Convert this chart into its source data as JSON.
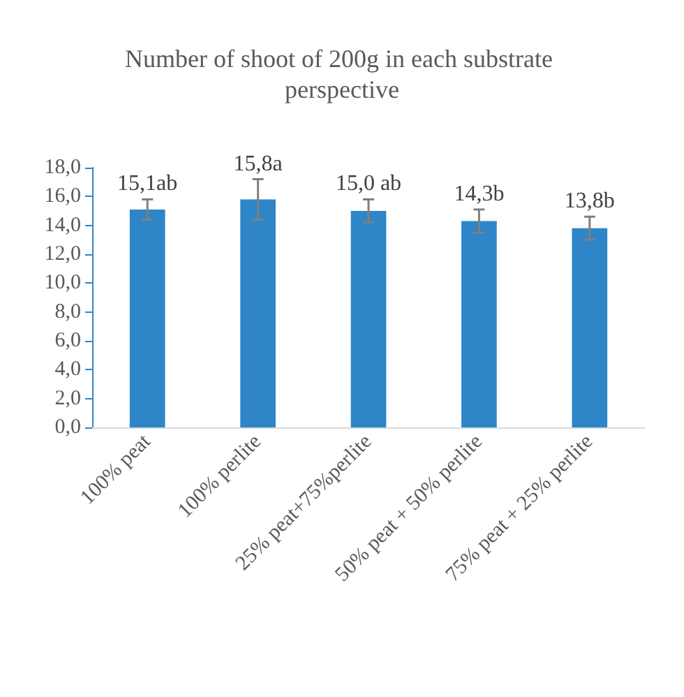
{
  "chart_data": {
    "type": "bar",
    "title": "Number of shoot of 200g in each substrate perspective",
    "categories": [
      "100% peat",
      "100% perlite",
      "25% peat+75%perlite",
      "50% peat + 50% perlite",
      "75% peat + 25% perlite"
    ],
    "values": [
      15.1,
      15.8,
      15.0,
      14.3,
      13.8
    ],
    "errors": [
      0.7,
      1.4,
      0.8,
      0.8,
      0.8
    ],
    "value_labels": [
      "15,1ab",
      "15,8a",
      "15,0 ab",
      "14,3b",
      "13,8b"
    ],
    "color": "#2e86c8",
    "ylim": [
      0,
      18
    ],
    "yticks": [
      {
        "value": 0,
        "label": "0,0"
      },
      {
        "value": 2,
        "label": "2,0"
      },
      {
        "value": 4,
        "label": "4,0"
      },
      {
        "value": 6,
        "label": "6,0"
      },
      {
        "value": 8,
        "label": "8,0"
      },
      {
        "value": 10,
        "label": "10,0"
      },
      {
        "value": 12,
        "label": "12,0"
      },
      {
        "value": 14,
        "label": "14,0"
      },
      {
        "value": 16,
        "label": "16,0"
      },
      {
        "value": 18,
        "label": "18,0"
      }
    ],
    "grid": false
  }
}
